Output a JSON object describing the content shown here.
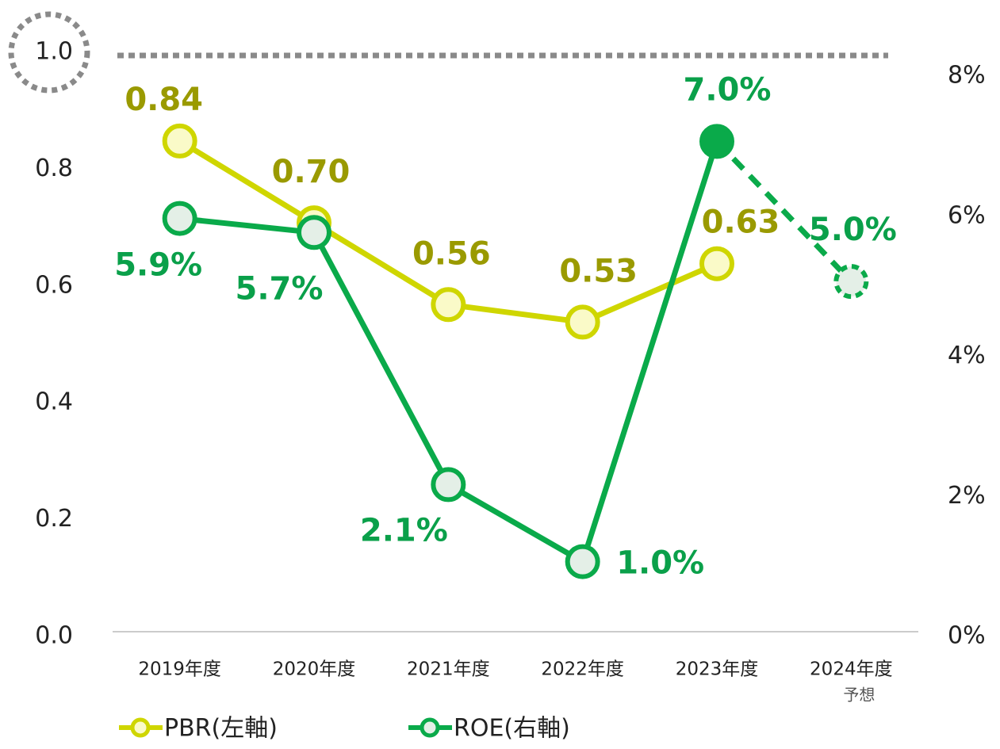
{
  "chart_data": {
    "type": "line",
    "categories": [
      "2019年度",
      "2020年度",
      "2021年度",
      "2022年度",
      "2023年度",
      "2024年度"
    ],
    "category_notes": [
      null,
      null,
      null,
      null,
      null,
      "予想"
    ],
    "series": [
      {
        "name": "PBR(左軸)",
        "color": "#cfd600",
        "label_color": "#9a9a00",
        "marker_fill": "#fafac8",
        "values": [
          0.84,
          0.7,
          0.56,
          0.53,
          0.63,
          null
        ],
        "value_labels": [
          "0.84",
          "0.70",
          "0.56",
          "0.53",
          "0.63",
          null
        ]
      },
      {
        "name": "ROE(右軸)",
        "color": "#0aaa4a",
        "label_color": "#0aa04a",
        "marker_fill": "#e4efe7",
        "axis": "y2",
        "values": [
          5.9,
          5.7,
          2.1,
          1.0,
          7.0,
          5.0
        ],
        "value_labels": [
          "5.9%",
          "5.7%",
          "2.1%",
          "1.0%",
          "7.0%",
          "5.0%"
        ]
      }
    ],
    "ylim": [
      0,
      1
    ],
    "yticks": [
      {
        "value": 0,
        "label": "0.0"
      },
      0.2,
      0.4,
      0.6,
      0.8,
      {
        "value": 1,
        "label": "1.0"
      }
    ],
    "y2lim": [
      0,
      8.34
    ],
    "y2ticks": [
      {
        "value": 0,
        "label": "0%"
      },
      {
        "value": 2,
        "label": "2%"
      },
      {
        "value": 4,
        "label": "4%"
      },
      {
        "value": 6,
        "label": "6%"
      },
      {
        "value": 8,
        "label": "8%"
      }
    ],
    "reference_line": 1
  }
}
